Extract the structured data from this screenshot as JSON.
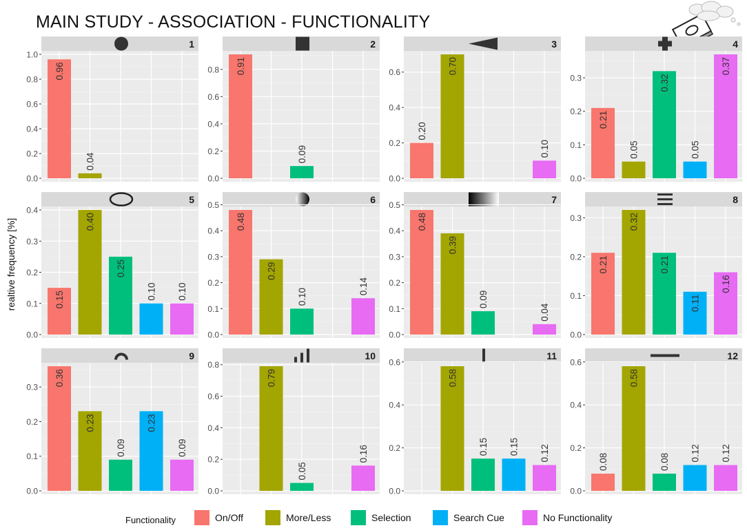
{
  "title": "MAIN STUDY - ASSOCIATION - FUNCTIONALITY",
  "ylabel": "realtive frequency [%]",
  "legend": {
    "title": "Functionality",
    "items": [
      {
        "label": "On/Off",
        "color": "#F8766D"
      },
      {
        "label": "More/Less",
        "color": "#A3A500"
      },
      {
        "label": "Selection",
        "color": "#00BF7D"
      },
      {
        "label": "Search Cue",
        "color": "#00B0F6"
      },
      {
        "label": "No Functionality",
        "color": "#E76BF3"
      }
    ]
  },
  "chart_data": [
    {
      "type": "bar",
      "panel": "1",
      "icon": "filled-circle-icon",
      "ylim": [
        0,
        1.0
      ],
      "yticks": [
        0.0,
        0.2,
        0.4,
        0.6,
        0.8,
        1.0
      ],
      "yticklabels": [
        "0.0",
        "0.2",
        "0.4",
        "0.6",
        "0.8",
        "1.0"
      ],
      "categories": [
        "On/Off",
        "More/Less",
        "Selection",
        "Search Cue",
        "No Functionality"
      ],
      "values": [
        0.96,
        0.04,
        null,
        null,
        null
      ],
      "labels": [
        "0.96",
        "0.04",
        null,
        null,
        null
      ]
    },
    {
      "type": "bar",
      "panel": "2",
      "icon": "filled-square-icon",
      "ylim": [
        0,
        0.91
      ],
      "yticks": [
        0.0,
        0.2,
        0.4,
        0.6,
        0.8
      ],
      "yticklabels": [
        "0.0",
        "0.2",
        "0.4",
        "0.6",
        "0.8"
      ],
      "categories": [
        "On/Off",
        "More/Less",
        "Selection",
        "Search Cue",
        "No Functionality"
      ],
      "values": [
        0.91,
        null,
        0.09,
        null,
        null
      ],
      "labels": [
        "0.91",
        null,
        "0.09",
        null,
        null
      ]
    },
    {
      "type": "bar",
      "panel": "3",
      "icon": "triangle-left-icon",
      "ylim": [
        0,
        0.7
      ],
      "yticks": [
        0.0,
        0.2,
        0.4,
        0.6
      ],
      "yticklabels": [
        "0.0",
        "0.2",
        "0.4",
        "0.6"
      ],
      "categories": [
        "On/Off",
        "More/Less",
        "Selection",
        "Search Cue",
        "No Functionality"
      ],
      "values": [
        0.2,
        0.7,
        null,
        null,
        0.1
      ],
      "labels": [
        "0.20",
        "0.70",
        null,
        null,
        "0.10"
      ]
    },
    {
      "type": "bar",
      "panel": "4",
      "icon": "plus-icon",
      "ylim": [
        0,
        0.37
      ],
      "yticks": [
        0.0,
        0.1,
        0.2,
        0.3
      ],
      "yticklabels": [
        "0.0",
        "0.1",
        "0.2",
        "0.3"
      ],
      "categories": [
        "On/Off",
        "More/Less",
        "Selection",
        "Search Cue",
        "No Functionality"
      ],
      "values": [
        0.21,
        0.05,
        0.32,
        0.05,
        0.37
      ],
      "labels": [
        "0.21",
        "0.05",
        "0.32",
        "0.05",
        "0.37"
      ]
    },
    {
      "type": "bar",
      "panel": "5",
      "icon": "ellipse-outline-icon",
      "ylim": [
        0,
        0.4
      ],
      "yticks": [
        0.0,
        0.1,
        0.2,
        0.3,
        0.4
      ],
      "yticklabels": [
        "0.0",
        "0.1",
        "0.2",
        "0.3",
        "0.4"
      ],
      "categories": [
        "On/Off",
        "More/Less",
        "Selection",
        "Search Cue",
        "No Functionality"
      ],
      "values": [
        0.15,
        0.4,
        0.25,
        0.1,
        0.1
      ],
      "labels": [
        "0.15",
        "0.40",
        "0.25",
        "0.10",
        "0.10"
      ]
    },
    {
      "type": "bar",
      "panel": "6",
      "icon": "gradient-circle-icon",
      "ylim": [
        0,
        0.48
      ],
      "yticks": [
        0.0,
        0.1,
        0.2,
        0.3,
        0.4,
        0.5
      ],
      "yticklabels": [
        "0.0",
        "0.1",
        "0.2",
        "0.3",
        "0.4",
        "0.5"
      ],
      "categories": [
        "On/Off",
        "More/Less",
        "Selection",
        "Search Cue",
        "No Functionality"
      ],
      "values": [
        0.48,
        0.29,
        0.1,
        null,
        0.14
      ],
      "labels": [
        "0.48",
        "0.29",
        "0.10",
        null,
        "0.14"
      ]
    },
    {
      "type": "bar",
      "panel": "7",
      "icon": "gradient-bar-icon",
      "ylim": [
        0,
        0.48
      ],
      "yticks": [
        0.0,
        0.1,
        0.2,
        0.3,
        0.4,
        0.5
      ],
      "yticklabels": [
        "0.0",
        "0.1",
        "0.2",
        "0.3",
        "0.4",
        "0.5"
      ],
      "categories": [
        "On/Off",
        "More/Less",
        "Selection",
        "Search Cue",
        "No Functionality"
      ],
      "values": [
        0.48,
        0.39,
        0.09,
        null,
        0.04
      ],
      "labels": [
        "0.48",
        "0.39",
        "0.09",
        null,
        "0.04"
      ]
    },
    {
      "type": "bar",
      "panel": "8",
      "icon": "triple-bar-icon",
      "ylim": [
        0,
        0.32
      ],
      "yticks": [
        0.0,
        0.1,
        0.2,
        0.3
      ],
      "yticklabels": [
        "0.0",
        "0.1",
        "0.2",
        "0.3"
      ],
      "categories": [
        "On/Off",
        "More/Less",
        "Selection",
        "Search Cue",
        "No Functionality"
      ],
      "values": [
        0.21,
        0.32,
        0.21,
        0.11,
        0.16
      ],
      "labels": [
        "0.21",
        "0.32",
        "0.21",
        "0.11",
        "0.16"
      ]
    },
    {
      "type": "bar",
      "panel": "9",
      "icon": "arc-icon",
      "ylim": [
        0,
        0.36
      ],
      "yticks": [
        0.0,
        0.1,
        0.2,
        0.3
      ],
      "yticklabels": [
        "0.0",
        "0.1",
        "0.2",
        "0.3"
      ],
      "categories": [
        "On/Off",
        "More/Less",
        "Selection",
        "Search Cue",
        "No Functionality"
      ],
      "values": [
        0.36,
        0.23,
        0.09,
        0.23,
        0.09
      ],
      "labels": [
        "0.36",
        "0.23",
        "0.09",
        "0.23",
        "0.09"
      ]
    },
    {
      "type": "bar",
      "panel": "10",
      "icon": "signal-bars-icon",
      "ylim": [
        0,
        0.79
      ],
      "yticks": [
        0.0,
        0.2,
        0.4,
        0.6,
        0.8
      ],
      "yticklabels": [
        "0.0",
        "0.2",
        "0.4",
        "0.6",
        "0.8"
      ],
      "categories": [
        "On/Off",
        "More/Less",
        "Selection",
        "Search Cue",
        "No Functionality"
      ],
      "values": [
        null,
        0.79,
        0.05,
        null,
        0.16
      ],
      "labels": [
        null,
        "0.79",
        "0.05",
        null,
        "0.16"
      ]
    },
    {
      "type": "bar",
      "panel": "11",
      "icon": "vertical-line-icon",
      "ylim": [
        0,
        0.58
      ],
      "yticks": [
        0.0,
        0.2,
        0.4,
        0.6
      ],
      "yticklabels": [
        "0.0",
        "0.2",
        "0.4",
        "0.6"
      ],
      "categories": [
        "On/Off",
        "More/Less",
        "Selection",
        "Search Cue",
        "No Functionality"
      ],
      "values": [
        null,
        0.58,
        0.15,
        0.15,
        0.12
      ],
      "labels": [
        null,
        "0.58",
        "0.15",
        "0.15",
        "0.12"
      ]
    },
    {
      "type": "bar",
      "panel": "12",
      "icon": "horizontal-line-icon",
      "ylim": [
        0,
        0.58
      ],
      "yticks": [
        0.0,
        0.2,
        0.4,
        0.6
      ],
      "yticklabels": [
        "0.0",
        "0.2",
        "0.4",
        "0.6"
      ],
      "categories": [
        "On/Off",
        "More/Less",
        "Selection",
        "Search Cue",
        "No Functionality"
      ],
      "values": [
        0.08,
        0.58,
        0.08,
        0.12,
        0.12
      ],
      "labels": [
        "0.08",
        "0.58",
        "0.08",
        "0.12",
        "0.12"
      ]
    }
  ]
}
